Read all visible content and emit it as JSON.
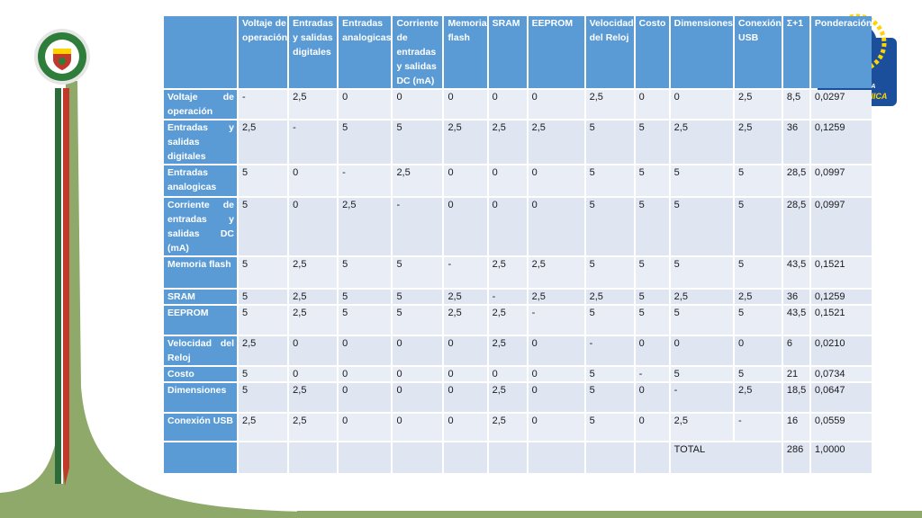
{
  "colors": {
    "header_blue": "#5b9bd5",
    "cell_light": "#e8edf6",
    "decor_green": "#8fa96a",
    "decor_red": "#c0392b",
    "decor_darkgreen": "#2e6b3a",
    "logo_blue": "#1b4f9c",
    "logo_yellow": "#ffd200"
  },
  "icons": {
    "left_logo": "espe-university-seal-icon",
    "right_logo": "espe-mecatronica-logo-icon"
  },
  "logo_right": {
    "line1": "ESPE",
    "line2": "INGENIERÍA",
    "line3": "MECATRÓNICA"
  },
  "table": {
    "columns": [
      "Voltaje de operación",
      "Entradas y salidas digitales",
      "Entradas analogicas",
      "Corriente de entradas y salidas DC (mA)",
      "Memoria flash",
      "SRAM",
      "EEPROM",
      "Velocidad del Reloj",
      "Costo",
      "Dimensiones",
      "Conexión USB",
      "Σ+1",
      "Ponderación"
    ],
    "rows": [
      {
        "label": "Voltaje de operación",
        "cells": [
          "-",
          "2,5",
          "0",
          "0",
          "0",
          "0",
          "0",
          "2,5",
          "0",
          "0",
          "2,5",
          "8,5",
          "0,0297"
        ]
      },
      {
        "label": "Entradas y salidas digitales",
        "cells": [
          "2,5",
          "-",
          "5",
          "5",
          "2,5",
          "2,5",
          "2,5",
          "5",
          "5",
          "2,5",
          "2,5",
          "36",
          "0,1259"
        ]
      },
      {
        "label": "Entradas analogicas",
        "cells": [
          "5",
          "0",
          "-",
          "2,5",
          "0",
          "0",
          "0",
          "5",
          "5",
          "5",
          "5",
          "28,5",
          "0,0997"
        ]
      },
      {
        "label": "Corriente de entradas y salidas DC (mA)",
        "cells": [
          "5",
          "0",
          "2,5",
          "-",
          "0",
          "0",
          "0",
          "5",
          "5",
          "5",
          "5",
          "28,5",
          "0,0997"
        ]
      },
      {
        "label": "Memoria flash",
        "cells": [
          "5",
          "2,5",
          "5",
          "5",
          "-",
          "2,5",
          "2,5",
          "5",
          "5",
          "5",
          "5",
          "43,5",
          "0,1521"
        ]
      },
      {
        "label": "SRAM",
        "cells": [
          "5",
          "2,5",
          "5",
          "5",
          "2,5",
          "-",
          "2,5",
          "2,5",
          "5",
          "2,5",
          "2,5",
          "36",
          "0,1259"
        ]
      },
      {
        "label": "EEPROM",
        "cells": [
          "5",
          "2,5",
          "5",
          "5",
          "2,5",
          "2,5",
          "-",
          "5",
          "5",
          "5",
          "5",
          "43,5",
          "0,1521"
        ]
      },
      {
        "label": "Velocidad del Reloj",
        "cells": [
          "2,5",
          "0",
          "0",
          "0",
          "0",
          "2,5",
          "0",
          "-",
          "0",
          "0",
          "0",
          "6",
          "0,0210"
        ]
      },
      {
        "label": "Costo",
        "cells": [
          "5",
          "0",
          "0",
          "0",
          "0",
          "0",
          "0",
          "5",
          "-",
          "5",
          "5",
          "21",
          "0,0734"
        ]
      },
      {
        "label": "Dimensiones",
        "cells": [
          "5",
          "2,5",
          "0",
          "0",
          "0",
          "2,5",
          "0",
          "5",
          "0",
          "-",
          "2,5",
          "18,5",
          "0,0647"
        ]
      },
      {
        "label": "Conexión USB",
        "cells": [
          "2,5",
          "2,5",
          "0",
          "0",
          "0",
          "2,5",
          "0",
          "5",
          "0",
          "2,5",
          "-",
          "16",
          "0,0559"
        ]
      }
    ],
    "total": {
      "label": "TOTAL",
      "sum": "286",
      "weight": "1,0000"
    }
  }
}
